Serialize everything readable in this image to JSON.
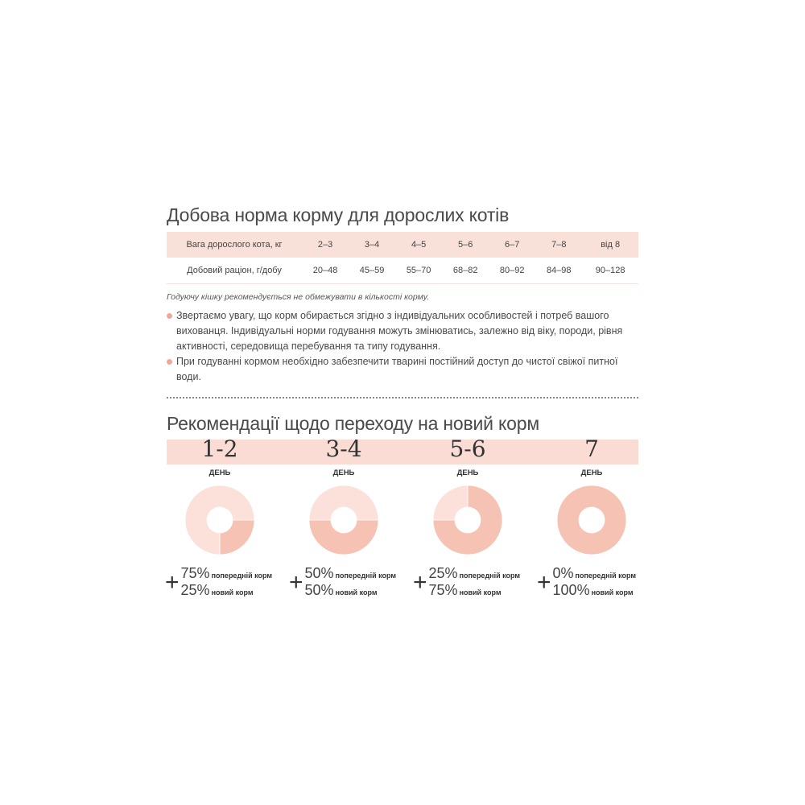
{
  "section1": {
    "title": "Добова норма корму для дорослих котів",
    "table": {
      "header": [
        "Вага дорослого кота, кг",
        "2–3",
        "3–4",
        "4–5",
        "5–6",
        "6–7",
        "7–8",
        "від 8"
      ],
      "row": [
        "Добовий раціон, г/добу",
        "20–48",
        "45–59",
        "55–70",
        "68–82",
        "80–92",
        "84–98",
        "90–128"
      ]
    },
    "note": "Годуючу кішку рекомендується не обмежувати в кількості корму.",
    "bullets": [
      "Звертаємо увагу, що корм обирається згідно з індивідуальних особливостей і потреб вашого вихованця. Індивідуальні норми годування можуть змінюватись, залежно від віку, породи, рівня активності, середовища перебування та типу годування.",
      "При годуванні кормом необхідно забезпечити тварині постійний доступ до чистої свіжої питної води."
    ]
  },
  "section2": {
    "title": "Рекомендації щодо переходу на новий корм",
    "day_word": "ДЕНЬ",
    "plus": "+",
    "steps": [
      {
        "days": "1-2",
        "old_pct": "75%",
        "new_pct": "25%",
        "old_label": "попередній корм",
        "new_label": "новий корм",
        "new_share": 0.25
      },
      {
        "days": "3-4",
        "old_pct": "50%",
        "new_pct": "50%",
        "old_label": "попередній корм",
        "new_label": "новий корм",
        "new_share": 0.5
      },
      {
        "days": "5-6",
        "old_pct": "25%",
        "new_pct": "75%",
        "old_label": "попередній корм",
        "new_label": "новий корм",
        "new_share": 0.75
      },
      {
        "days": "7",
        "old_pct": "0%",
        "new_pct": "100%",
        "old_label": "попередній корм",
        "new_label": "новий корм",
        "new_share": 1
      }
    ]
  },
  "colors": {
    "old": "#fbe1da",
    "new": "#f6c2b3",
    "band": "#fadcd4"
  }
}
